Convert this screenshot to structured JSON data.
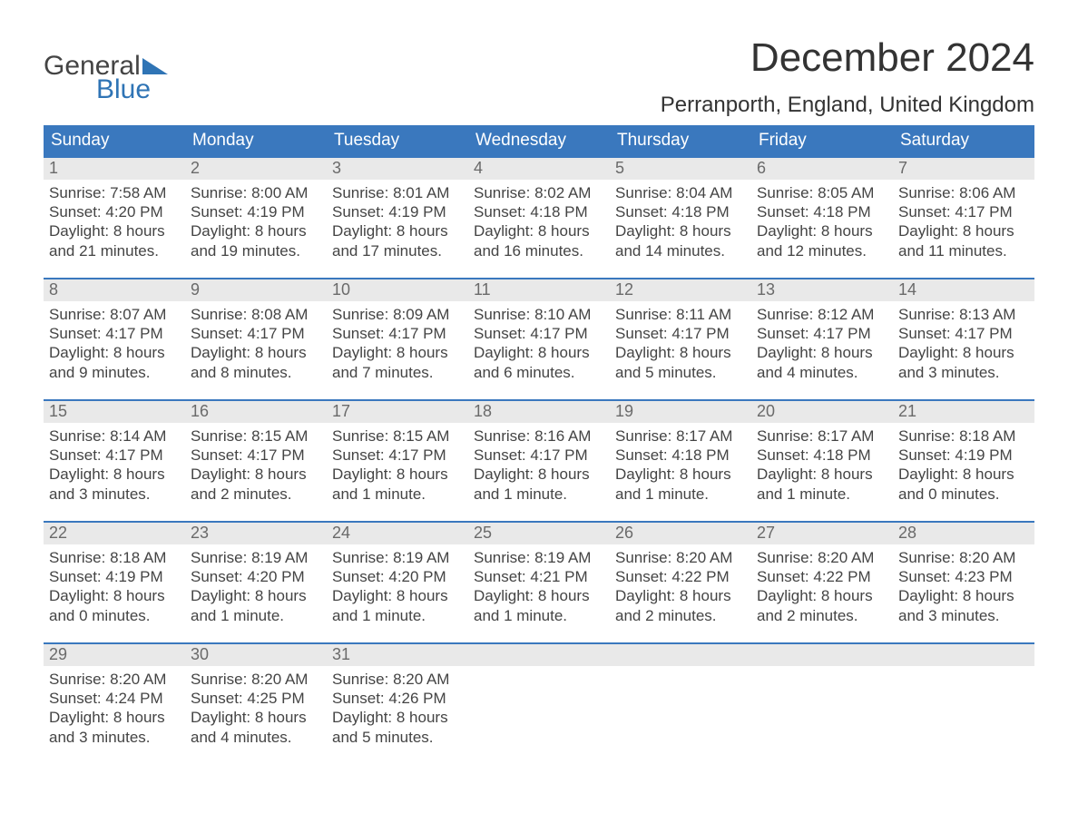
{
  "logo": {
    "top": "General",
    "bottom": "Blue"
  },
  "title": "December 2024",
  "location": "Perranporth, England, United Kingdom",
  "colors": {
    "header_bg": "#3a78be",
    "header_text": "#ffffff",
    "day_number_bg": "#e9e9e9",
    "day_number_text": "#6a6a6a",
    "body_text": "#444444",
    "logo_gray": "#444444",
    "logo_blue": "#2f74b5",
    "week_border": "#3a78be"
  },
  "weekdays": [
    "Sunday",
    "Monday",
    "Tuesday",
    "Wednesday",
    "Thursday",
    "Friday",
    "Saturday"
  ],
  "weeks": [
    [
      {
        "n": "1",
        "sunrise": "7:58 AM",
        "sunset": "4:20 PM",
        "daylight": "8 hours",
        "and": "and 21 minutes."
      },
      {
        "n": "2",
        "sunrise": "8:00 AM",
        "sunset": "4:19 PM",
        "daylight": "8 hours",
        "and": "and 19 minutes."
      },
      {
        "n": "3",
        "sunrise": "8:01 AM",
        "sunset": "4:19 PM",
        "daylight": "8 hours",
        "and": "and 17 minutes."
      },
      {
        "n": "4",
        "sunrise": "8:02 AM",
        "sunset": "4:18 PM",
        "daylight": "8 hours",
        "and": "and 16 minutes."
      },
      {
        "n": "5",
        "sunrise": "8:04 AM",
        "sunset": "4:18 PM",
        "daylight": "8 hours",
        "and": "and 14 minutes."
      },
      {
        "n": "6",
        "sunrise": "8:05 AM",
        "sunset": "4:18 PM",
        "daylight": "8 hours",
        "and": "and 12 minutes."
      },
      {
        "n": "7",
        "sunrise": "8:06 AM",
        "sunset": "4:17 PM",
        "daylight": "8 hours",
        "and": "and 11 minutes."
      }
    ],
    [
      {
        "n": "8",
        "sunrise": "8:07 AM",
        "sunset": "4:17 PM",
        "daylight": "8 hours",
        "and": "and 9 minutes."
      },
      {
        "n": "9",
        "sunrise": "8:08 AM",
        "sunset": "4:17 PM",
        "daylight": "8 hours",
        "and": "and 8 minutes."
      },
      {
        "n": "10",
        "sunrise": "8:09 AM",
        "sunset": "4:17 PM",
        "daylight": "8 hours",
        "and": "and 7 minutes."
      },
      {
        "n": "11",
        "sunrise": "8:10 AM",
        "sunset": "4:17 PM",
        "daylight": "8 hours",
        "and": "and 6 minutes."
      },
      {
        "n": "12",
        "sunrise": "8:11 AM",
        "sunset": "4:17 PM",
        "daylight": "8 hours",
        "and": "and 5 minutes."
      },
      {
        "n": "13",
        "sunrise": "8:12 AM",
        "sunset": "4:17 PM",
        "daylight": "8 hours",
        "and": "and 4 minutes."
      },
      {
        "n": "14",
        "sunrise": "8:13 AM",
        "sunset": "4:17 PM",
        "daylight": "8 hours",
        "and": "and 3 minutes."
      }
    ],
    [
      {
        "n": "15",
        "sunrise": "8:14 AM",
        "sunset": "4:17 PM",
        "daylight": "8 hours",
        "and": "and 3 minutes."
      },
      {
        "n": "16",
        "sunrise": "8:15 AM",
        "sunset": "4:17 PM",
        "daylight": "8 hours",
        "and": "and 2 minutes."
      },
      {
        "n": "17",
        "sunrise": "8:15 AM",
        "sunset": "4:17 PM",
        "daylight": "8 hours",
        "and": "and 1 minute."
      },
      {
        "n": "18",
        "sunrise": "8:16 AM",
        "sunset": "4:17 PM",
        "daylight": "8 hours",
        "and": "and 1 minute."
      },
      {
        "n": "19",
        "sunrise": "8:17 AM",
        "sunset": "4:18 PM",
        "daylight": "8 hours",
        "and": "and 1 minute."
      },
      {
        "n": "20",
        "sunrise": "8:17 AM",
        "sunset": "4:18 PM",
        "daylight": "8 hours",
        "and": "and 1 minute."
      },
      {
        "n": "21",
        "sunrise": "8:18 AM",
        "sunset": "4:19 PM",
        "daylight": "8 hours",
        "and": "and 0 minutes."
      }
    ],
    [
      {
        "n": "22",
        "sunrise": "8:18 AM",
        "sunset": "4:19 PM",
        "daylight": "8 hours",
        "and": "and 0 minutes."
      },
      {
        "n": "23",
        "sunrise": "8:19 AM",
        "sunset": "4:20 PM",
        "daylight": "8 hours",
        "and": "and 1 minute."
      },
      {
        "n": "24",
        "sunrise": "8:19 AM",
        "sunset": "4:20 PM",
        "daylight": "8 hours",
        "and": "and 1 minute."
      },
      {
        "n": "25",
        "sunrise": "8:19 AM",
        "sunset": "4:21 PM",
        "daylight": "8 hours",
        "and": "and 1 minute."
      },
      {
        "n": "26",
        "sunrise": "8:20 AM",
        "sunset": "4:22 PM",
        "daylight": "8 hours",
        "and": "and 2 minutes."
      },
      {
        "n": "27",
        "sunrise": "8:20 AM",
        "sunset": "4:22 PM",
        "daylight": "8 hours",
        "and": "and 2 minutes."
      },
      {
        "n": "28",
        "sunrise": "8:20 AM",
        "sunset": "4:23 PM",
        "daylight": "8 hours",
        "and": "and 3 minutes."
      }
    ],
    [
      {
        "n": "29",
        "sunrise": "8:20 AM",
        "sunset": "4:24 PM",
        "daylight": "8 hours",
        "and": "and 3 minutes."
      },
      {
        "n": "30",
        "sunrise": "8:20 AM",
        "sunset": "4:25 PM",
        "daylight": "8 hours",
        "and": "and 4 minutes."
      },
      {
        "n": "31",
        "sunrise": "8:20 AM",
        "sunset": "4:26 PM",
        "daylight": "8 hours",
        "and": "and 5 minutes."
      },
      {
        "n": "",
        "empty": true
      },
      {
        "n": "",
        "empty": true
      },
      {
        "n": "",
        "empty": true
      },
      {
        "n": "",
        "empty": true
      }
    ]
  ],
  "labels": {
    "sunrise": "Sunrise: ",
    "sunset": "Sunset: ",
    "daylight": "Daylight: "
  }
}
